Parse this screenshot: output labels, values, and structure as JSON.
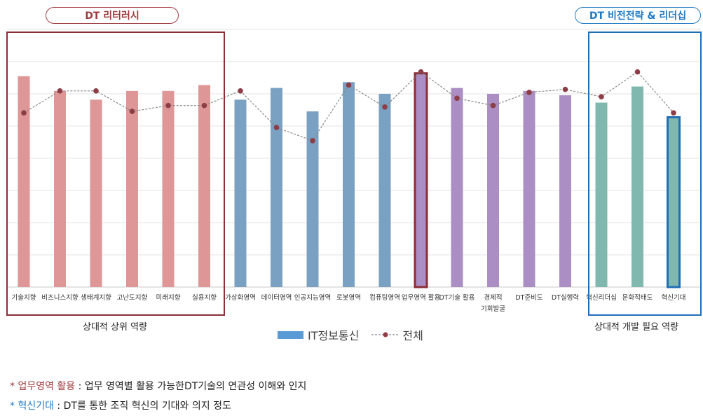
{
  "headers": {
    "left": "DT 리터러시",
    "right": "DT 비전전략 & 리더십"
  },
  "captions": {
    "left": "상대적 상위 역량",
    "right": "상대적 개발 필요 역량"
  },
  "legend": {
    "bar": "IT정보통신",
    "line": "전체"
  },
  "notes": [
    {
      "star": "* ",
      "term": "업무영역 활용",
      "sep": " : ",
      "desc": "업무 영역별 활용 가능한DT기술의 연관성 이해와 인지",
      "color": "#9e3b40"
    },
    {
      "star": "* ",
      "term": "혁신기대",
      "sep": " : ",
      "desc": "DT를 통한 조직 혁신의 기대와 의지 정도",
      "color": "#1f7ac4"
    }
  ],
  "colors": {
    "pink": "#de9696",
    "blue": "#7aa1c1",
    "purple": "#ab8fc4",
    "teal": "#80b8b0",
    "line": "#888888",
    "marker": "#8c3d45",
    "red_box": "#8b2e35",
    "blue_box": "#1f6fb8"
  },
  "chart_data": {
    "type": "bar",
    "categories": [
      "기술지향",
      "비즈니스지향",
      "생태계지향",
      "고난도지향",
      "미래지향",
      "실용지향",
      "가상화영역",
      "데이터영역",
      "인공지능영역",
      "로봇영역",
      "컴퓨팅영역",
      "업무영역 활용",
      "DT기술 활용",
      "경제적 기회발굴",
      "DT준비도",
      "DT실행력",
      "혁신리더십",
      "문화적태도",
      "혁신기대"
    ],
    "category_groups": [
      "pink",
      "pink",
      "pink",
      "pink",
      "pink",
      "pink",
      "blue",
      "blue",
      "blue",
      "blue",
      "blue",
      "purple",
      "purple",
      "purple",
      "purple",
      "purple",
      "teal",
      "teal",
      "teal"
    ],
    "series": [
      {
        "name": "IT정보통신",
        "values": [
          7.2,
          6.7,
          6.4,
          6.7,
          6.7,
          6.9,
          6.4,
          6.8,
          6.0,
          7.0,
          6.6,
          7.3,
          6.8,
          6.6,
          6.7,
          6.55,
          6.3,
          6.85,
          5.8
        ]
      },
      {
        "name": "전체",
        "values": [
          5.95,
          6.7,
          6.7,
          6.0,
          6.2,
          6.2,
          6.7,
          5.45,
          5.0,
          6.9,
          6.15,
          7.35,
          6.45,
          6.2,
          6.65,
          6.75,
          6.5,
          7.35,
          5.95
        ]
      }
    ],
    "highlighted": [
      "업무영역 활용",
      "혁신기대"
    ],
    "ylim": [
      0,
      8.8
    ],
    "grid": true
  }
}
